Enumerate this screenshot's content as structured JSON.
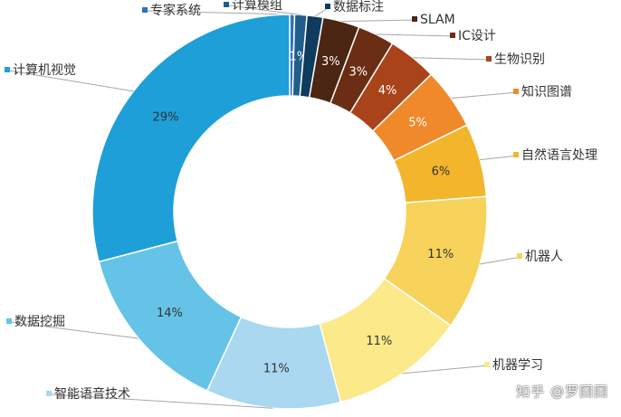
{
  "chart_data": {
    "type": "pie",
    "donut": true,
    "categories": [
      "专家系统",
      "计算模组",
      "数据标注",
      "SLAM",
      "IC设计",
      "生物识别",
      "知识图谱",
      "自然语言处理",
      "机器人",
      "机器学习",
      "智能语音技术",
      "数据挖掘",
      "计算机视觉"
    ],
    "values": [
      0.4,
      1,
      1.3,
      3,
      3,
      4,
      5,
      6,
      11,
      11,
      11,
      14,
      29
    ],
    "value_labels": [
      "",
      "1%",
      "",
      "3%",
      "3%",
      "4%",
      "5%",
      "6%",
      "11%",
      "11%",
      "11%",
      "14%",
      "29%"
    ],
    "colors": [
      "#2E75B6",
      "#1F5E8C",
      "#0E3B5E",
      "#4B2612",
      "#6B2D14",
      "#A8431A",
      "#F0892A",
      "#F2B52C",
      "#F7D35C",
      "#FBE98A",
      "#A9D8F0",
      "#66C3E8",
      "#1E9FD8"
    ],
    "label_colors": [
      "#ffffff",
      "#ffffff",
      "#ffffff",
      "#ffffff",
      "#ffffff",
      "#ffffff",
      "#ffffff",
      "#333333",
      "#333333",
      "#333333",
      "#333333",
      "#333333",
      "#333333"
    ],
    "title": "",
    "legend": "callout labels around ring"
  },
  "watermark": "知乎 @罗囧囧"
}
